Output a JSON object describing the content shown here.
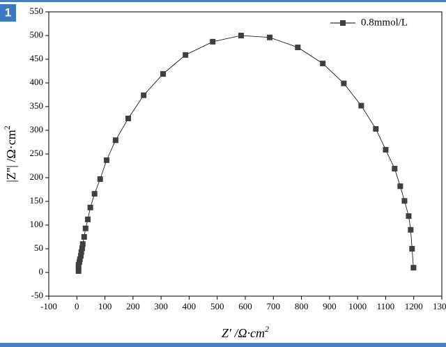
{
  "badge": "1",
  "chart_data": {
    "type": "scatter-line",
    "x_label": {
      "text": "Z′ /Ω·cm",
      "sup": "2"
    },
    "y_label": {
      "text": "|Z''| /Ω·cm",
      "sup": "2"
    },
    "series": [
      {
        "name": "0.8mmol/L",
        "color": "#3f3f3f",
        "x": [
          6,
          6,
          6,
          9,
          11,
          14,
          16,
          19,
          21,
          26,
          31,
          39,
          48,
          63,
          83,
          106,
          138,
          183,
          238,
          307,
          387,
          484,
          585,
          687,
          787,
          876,
          951,
          1013,
          1065,
          1100,
          1132,
          1152,
          1167,
          1182,
          1189,
          1194,
          1199
        ],
        "values": [
          3,
          10,
          16,
          22,
          28,
          35,
          43,
          51,
          60,
          75,
          93,
          112,
          137,
          166,
          197,
          237,
          279,
          325,
          374,
          419,
          459,
          487,
          500,
          496,
          475,
          441,
          399,
          352,
          303,
          259,
          219,
          182,
          151,
          119,
          90,
          50,
          10
        ]
      }
    ],
    "xlim": [
      -100,
      1300
    ],
    "xticks": [
      -100,
      0,
      100,
      200,
      300,
      400,
      500,
      600,
      700,
      800,
      900,
      1000,
      1100,
      1200,
      1300
    ],
    "ylim": [
      -50,
      550
    ],
    "yticks": [
      -50,
      0,
      50,
      100,
      150,
      200,
      250,
      300,
      350,
      400,
      450,
      500,
      550
    ],
    "legend": "upper right"
  }
}
